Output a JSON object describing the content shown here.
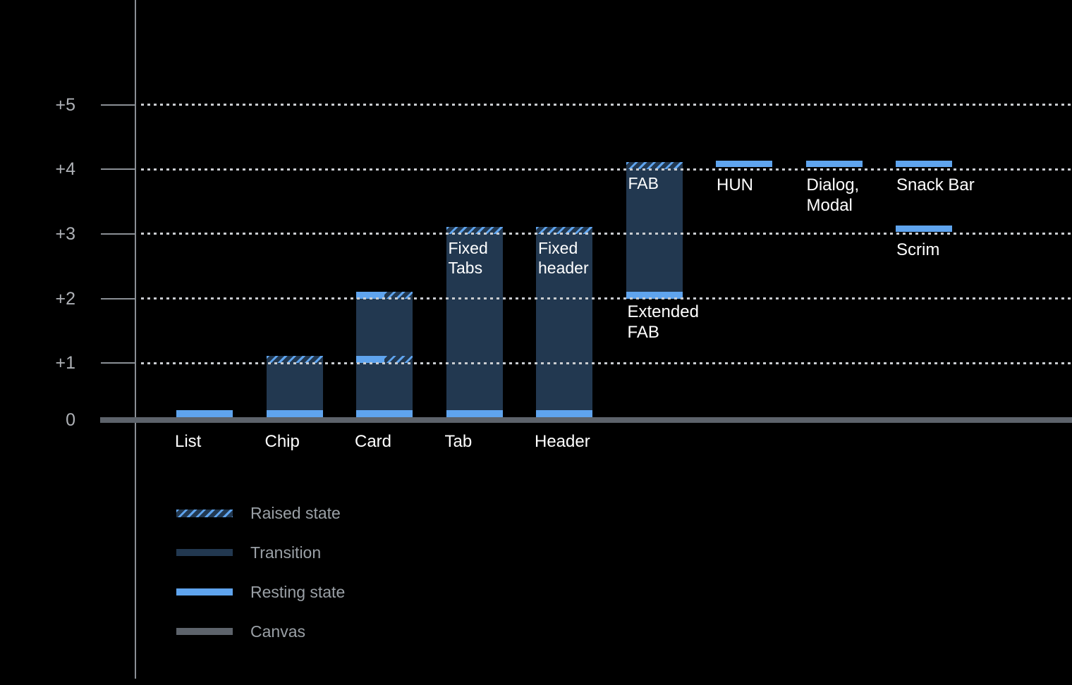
{
  "chart_data": {
    "type": "bar",
    "title": "",
    "xlabel": "",
    "ylabel": "",
    "description": "Elevation diagram showing resting state, raised state and transition ranges of UI components above the canvas",
    "y_axis": {
      "tick_labels": [
        "0",
        "+1",
        "+2",
        "+3",
        "+4",
        "+5"
      ],
      "range": [
        0,
        5
      ],
      "gridlines": "dotted horizontal lines at +1 through +5"
    },
    "components": [
      {
        "name": "List",
        "col": 0,
        "kind": "canvas-band",
        "resting": 0,
        "label": {
          "lines": [
            "List"
          ],
          "placement": "below-axis"
        }
      },
      {
        "name": "Chip",
        "col": 1,
        "kind": "bar",
        "transition": [
          0,
          1
        ],
        "resting": 0,
        "raised": 1,
        "label": {
          "lines": [
            "Chip"
          ],
          "placement": "below-axis"
        }
      },
      {
        "name": "Card",
        "col": 2,
        "kind": "bar",
        "transition": [
          0,
          2
        ],
        "resting": 0,
        "split_levels": [
          1,
          2
        ],
        "label": {
          "lines": [
            "Card"
          ],
          "placement": "below-axis"
        }
      },
      {
        "name": "Tab",
        "col": 3,
        "kind": "bar",
        "transition": [
          0,
          3
        ],
        "resting": 0,
        "raised": 3,
        "inner_label": [
          "Fixed",
          "Tabs"
        ],
        "label": {
          "lines": [
            "Tab"
          ],
          "placement": "below-axis"
        }
      },
      {
        "name": "Header",
        "col": 4,
        "kind": "bar",
        "transition": [
          0,
          3
        ],
        "resting": 0,
        "raised": 3,
        "inner_label": [
          "Fixed",
          "header"
        ],
        "label": {
          "lines": [
            "Header"
          ],
          "placement": "below-axis"
        }
      },
      {
        "name": "Extended FAB",
        "col": 5,
        "kind": "bar",
        "transition": [
          2,
          4
        ],
        "resting": 2,
        "raised": 4,
        "inner_label": [
          "FAB"
        ],
        "label": {
          "lines": [
            "Extended",
            "FAB"
          ],
          "placement": "below-bar"
        }
      },
      {
        "name": "HUN",
        "col": 6,
        "kind": "floating-band",
        "resting": 4,
        "label": {
          "lines": [
            "HUN"
          ],
          "placement": "below-band"
        }
      },
      {
        "name": "Dialog, Modal",
        "col": 7,
        "kind": "floating-band",
        "resting": 4,
        "label": {
          "lines": [
            "Dialog,",
            "Modal"
          ],
          "placement": "below-band"
        }
      },
      {
        "name": "Snack Bar",
        "col": 8,
        "kind": "floating-band",
        "resting": 4,
        "label": {
          "lines": [
            "Snack Bar"
          ],
          "placement": "below-band"
        }
      },
      {
        "name": "Scrim",
        "col": 8,
        "kind": "floating-band",
        "resting": 3,
        "label": {
          "lines": [
            "Scrim"
          ],
          "placement": "below-band"
        }
      }
    ],
    "legend": [
      {
        "label": "Raised state",
        "style": "hatched-light-blue-on-dark-blue"
      },
      {
        "label": "Transition",
        "style": "solid-dark-blue"
      },
      {
        "label": "Resting state",
        "style": "solid-light-blue"
      },
      {
        "label": "Canvas",
        "style": "solid-gray"
      }
    ],
    "legend_position": "bottom-left",
    "colors": {
      "background": "#000000",
      "transition": "#223850",
      "resting": "#5fa4ee",
      "canvas": "#5d636b",
      "grid_dots": "#c9ccd0",
      "axis": "#8a8f95",
      "tick_text": "#aeb1b6",
      "label_text": "#ffffff",
      "legend_text": "#9aa0a6"
    }
  }
}
